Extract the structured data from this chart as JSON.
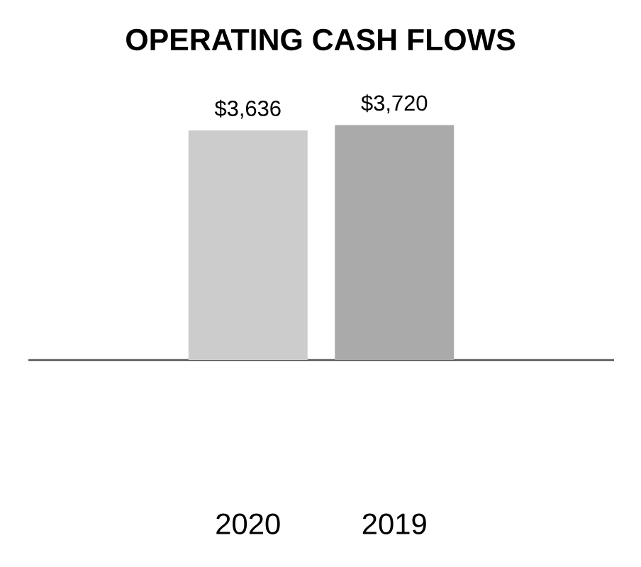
{
  "chart_data": {
    "type": "bar",
    "title": "OPERATING CASH FLOWS",
    "categories": [
      "2020",
      "2019"
    ],
    "values": [
      3636,
      3720
    ],
    "colors": [
      "#cccccc",
      "#aaaaaa"
    ],
    "value_labels": [
      "$3,636",
      "$3,720"
    ],
    "tick_labels": "x"
  }
}
